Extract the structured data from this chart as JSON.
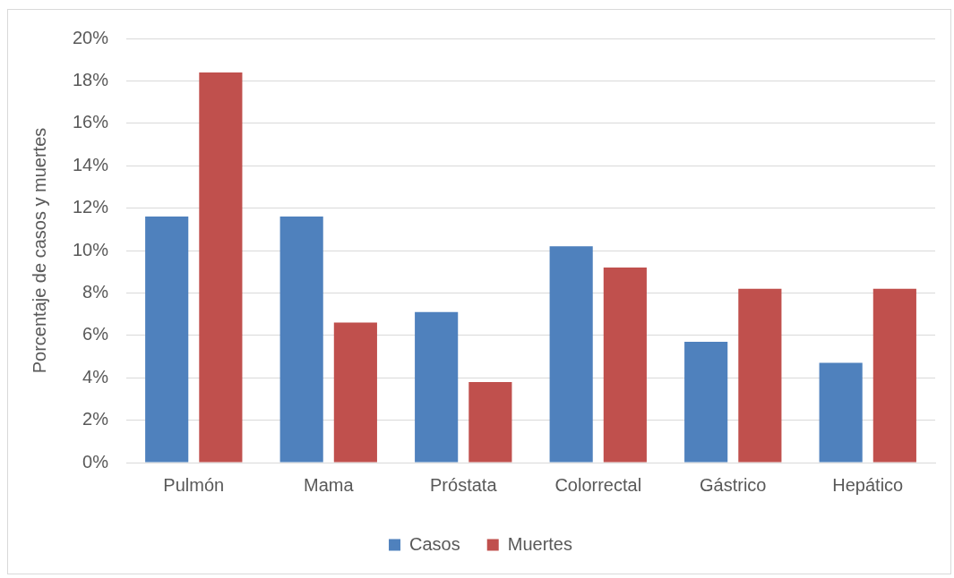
{
  "chart_data": {
    "type": "bar",
    "ylabel": "Porcentaje de casos y muertes",
    "categories": [
      "Pulmón",
      "Mama",
      "Próstata",
      "Colorrectal",
      "Gástrico",
      "Hepático"
    ],
    "series": [
      {
        "name": "Casos",
        "color": "#4f81bd",
        "values": [
          11.6,
          11.6,
          7.1,
          10.2,
          5.7,
          4.7
        ]
      },
      {
        "name": "Muertes",
        "color": "#c0504d",
        "values": [
          18.4,
          6.6,
          3.8,
          9.2,
          8.2,
          8.2
        ]
      }
    ],
    "ylim": [
      0,
      20
    ],
    "yticks": [
      {
        "value": 0,
        "label": "0%"
      },
      {
        "value": 2,
        "label": "2%"
      },
      {
        "value": 4,
        "label": "4%"
      },
      {
        "value": 6,
        "label": "6%"
      },
      {
        "value": 8,
        "label": "8%"
      },
      {
        "value": 10,
        "label": "10%"
      },
      {
        "value": 12,
        "label": "12%"
      },
      {
        "value": 14,
        "label": "14%"
      },
      {
        "value": 16,
        "label": "16%"
      },
      {
        "value": 18,
        "label": "18%"
      },
      {
        "value": 20,
        "label": "20%"
      }
    ],
    "grid": "y",
    "legend": "bottom"
  }
}
